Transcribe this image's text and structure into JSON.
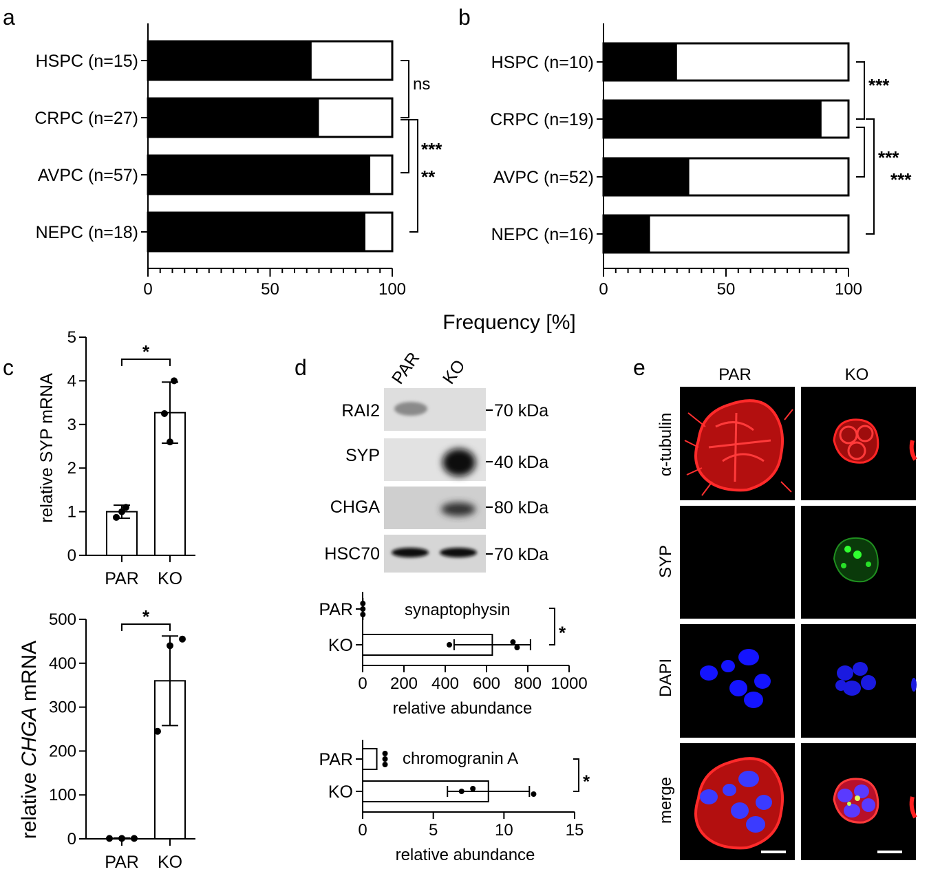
{
  "panels": {
    "a": "a",
    "b": "b",
    "c": "c",
    "d": "d",
    "e": "e"
  },
  "shared_xlabel": "Frequency [%]",
  "chart_data": [
    {
      "id": "a",
      "type": "bar",
      "orientation": "horizontal",
      "stacked": true,
      "categories": [
        "HSPC (n=15)",
        "CRPC (n=27)",
        "AVPC (n=57)",
        "NEPC (n=18)"
      ],
      "values": [
        67,
        70,
        91,
        89
      ],
      "xlim": [
        0,
        100
      ],
      "xticks": [
        "0",
        "50",
        "100"
      ],
      "significance": [
        {
          "between": [
            0,
            1
          ],
          "label": "ns"
        },
        {
          "between": [
            1,
            2
          ],
          "label": "***"
        },
        {
          "between": [
            1,
            3
          ],
          "label": "**"
        }
      ]
    },
    {
      "id": "b",
      "type": "bar",
      "orientation": "horizontal",
      "stacked": true,
      "categories": [
        "HSPC (n=10)",
        "CRPC (n=19)",
        "AVPC (n=52)",
        "NEPC (n=16)"
      ],
      "values": [
        30,
        89,
        35,
        19
      ],
      "xlim": [
        0,
        100
      ],
      "xticks": [
        "0",
        "50",
        "100"
      ],
      "significance": [
        {
          "between": [
            0,
            1
          ],
          "label": "***"
        },
        {
          "between": [
            1,
            2
          ],
          "label": "***"
        },
        {
          "between": [
            1,
            3
          ],
          "label": "***"
        }
      ]
    },
    {
      "id": "c-syp",
      "type": "bar",
      "categories": [
        "PAR",
        "KO"
      ],
      "values": [
        1.0,
        3.27
      ],
      "errors": [
        0.15,
        0.7
      ],
      "points": [
        [
          1.0,
          0.87,
          1.1
        ],
        [
          2.6,
          3.25,
          4.0
        ]
      ],
      "ylim": [
        0,
        5
      ],
      "yticks": [
        "0",
        "1",
        "2",
        "3",
        "4",
        "5"
      ],
      "ylabel": "relative SYP mRNA",
      "significance": "*"
    },
    {
      "id": "c-chga",
      "type": "bar",
      "categories": [
        "PAR",
        "KO"
      ],
      "values": [
        1,
        360
      ],
      "errors": [
        1,
        102
      ],
      "points": [
        [
          1,
          1,
          1
        ],
        [
          245,
          440,
          455
        ]
      ],
      "ylim": [
        0,
        500
      ],
      "yticks": [
        "0",
        "100",
        "200",
        "300",
        "400",
        "500"
      ],
      "ylabel_prefix": "relative ",
      "ylabel_gene": "CHGA",
      "ylabel_suffix": " mRNA",
      "significance": "*"
    },
    {
      "id": "d-syp",
      "type": "bar",
      "orientation": "horizontal",
      "categories": [
        "PAR",
        "KO"
      ],
      "values": [
        1,
        628
      ],
      "errors": [
        0,
        185
      ],
      "points": [
        [
          1,
          1,
          1
        ],
        [
          420,
          728,
          748
        ]
      ],
      "xlim": [
        0,
        1000
      ],
      "xticks": [
        "0",
        "200",
        "400",
        "600",
        "800",
        "1000"
      ],
      "title": "synaptophysin",
      "xlabel": "relative abundance",
      "significance": "*"
    },
    {
      "id": "d-chga",
      "type": "bar",
      "orientation": "horizontal",
      "categories": [
        "PAR",
        "KO"
      ],
      "values": [
        1,
        8.9
      ],
      "errors": [
        0,
        2.9
      ],
      "points": [
        [
          1,
          1,
          1
        ],
        [
          7.0,
          7.8,
          12.1
        ]
      ],
      "xlim": [
        0,
        15
      ],
      "xticks": [
        "0",
        "5",
        "10",
        "15"
      ],
      "title": "chromogranin A",
      "xlabel": "relative abundance",
      "significance": "*"
    }
  ],
  "western_blot": {
    "lanes": [
      "PAR",
      "KO"
    ],
    "rows": [
      {
        "protein": "RAI2",
        "size": "70 kDa"
      },
      {
        "protein": "SYP",
        "size": "40 kDa"
      },
      {
        "protein": "CHGA",
        "size": "80 kDa"
      },
      {
        "protein": "HSC70",
        "size": "70 kDa"
      }
    ]
  },
  "microscopy": {
    "columns": [
      "PAR",
      "KO"
    ],
    "rows": [
      "α-tubulin",
      "SYP",
      "DAPI",
      "merge"
    ],
    "colors": {
      "tubulin": "#e01010",
      "syp": "#20d020",
      "dapi": "#1a1aff",
      "background": "#000000"
    }
  }
}
